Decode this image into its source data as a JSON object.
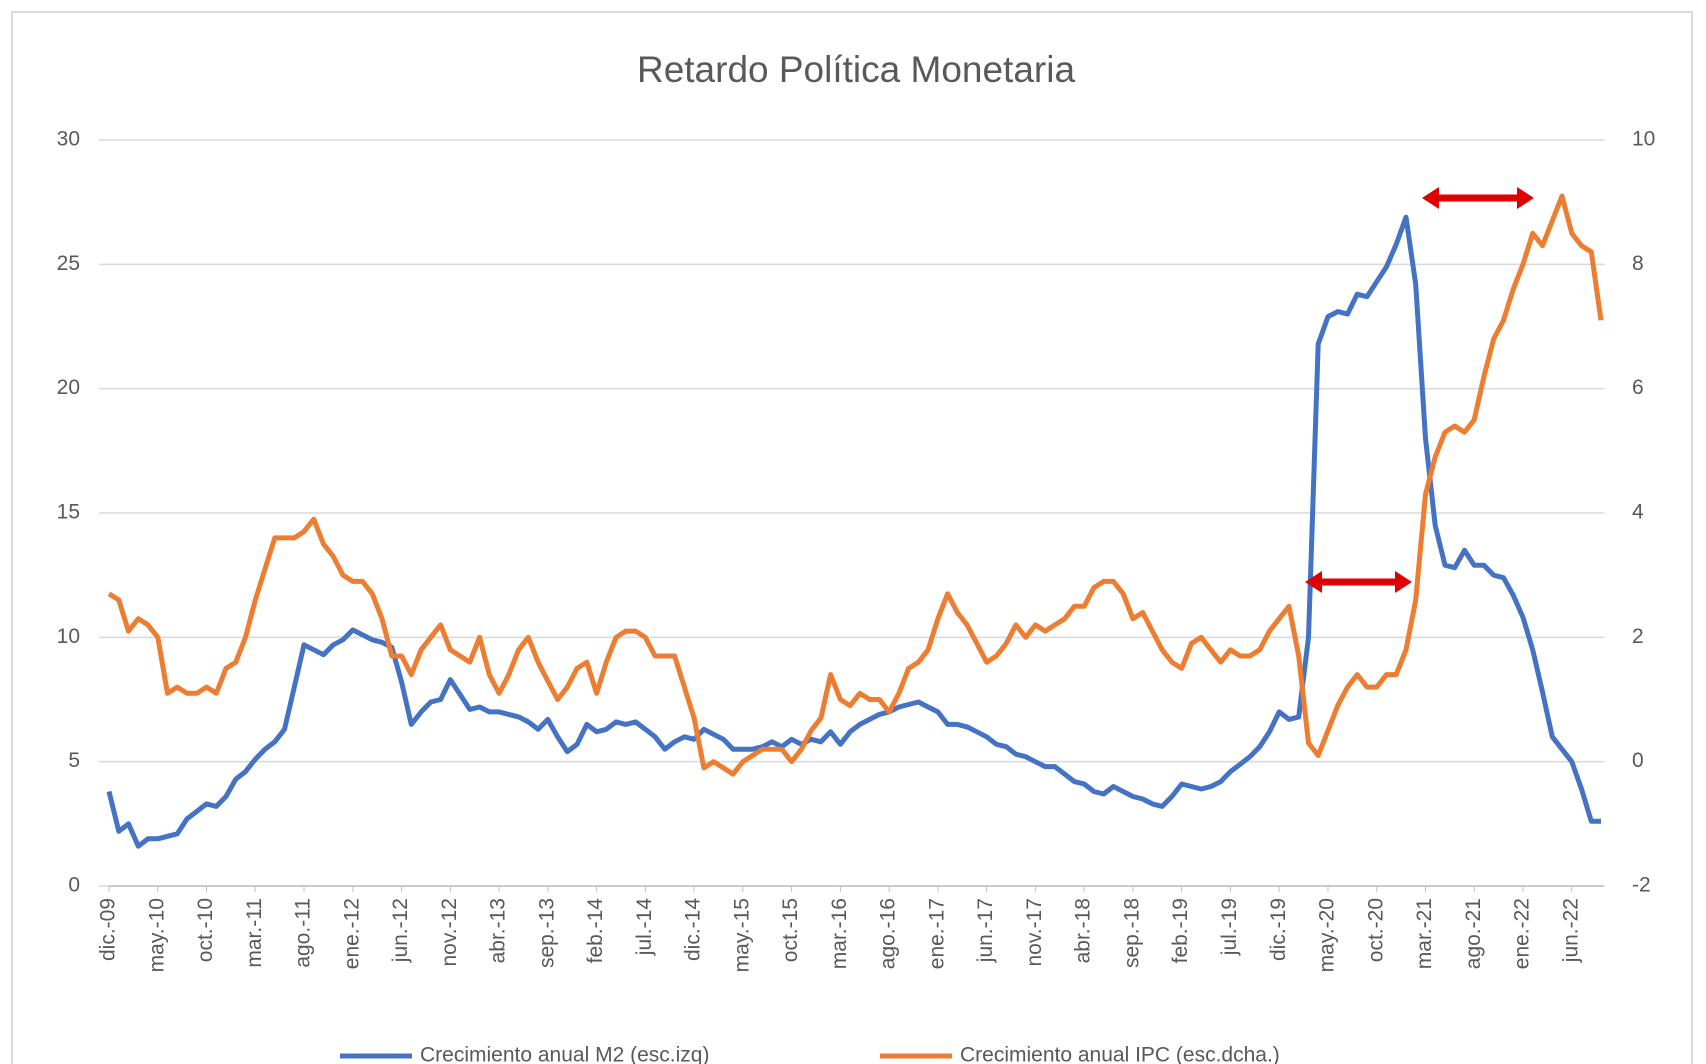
{
  "chart_data": {
    "type": "line",
    "title": "Retardo Política Monetaria",
    "categories": [
      "dic.-09",
      null,
      null,
      null,
      null,
      "may.-10",
      null,
      null,
      null,
      null,
      "oct.-10",
      null,
      null,
      null,
      null,
      "mar.-11",
      null,
      null,
      null,
      null,
      "ago.-11",
      null,
      null,
      null,
      null,
      "ene.-12",
      null,
      null,
      null,
      null,
      "jun.-12",
      null,
      null,
      null,
      null,
      "nov.-12",
      null,
      null,
      null,
      null,
      "abr.-13",
      null,
      null,
      null,
      null,
      "sep.-13",
      null,
      null,
      null,
      null,
      "feb.-14",
      null,
      null,
      null,
      null,
      "jul.-14",
      null,
      null,
      null,
      null,
      "dic.-14",
      null,
      null,
      null,
      null,
      "may.-15",
      null,
      null,
      null,
      null,
      "oct.-15",
      null,
      null,
      null,
      null,
      "mar.-16",
      null,
      null,
      null,
      null,
      "ago.-16",
      null,
      null,
      null,
      null,
      "ene.-17",
      null,
      null,
      null,
      null,
      "jun.-17",
      null,
      null,
      null,
      null,
      "nov.-17",
      null,
      null,
      null,
      null,
      "abr.-18",
      null,
      null,
      null,
      null,
      "sep.-18",
      null,
      null,
      null,
      null,
      "feb.-19",
      null,
      null,
      null,
      null,
      "jul.-19",
      null,
      null,
      null,
      null,
      "dic.-19",
      null,
      null,
      null,
      null,
      "may.-20",
      null,
      null,
      null,
      null,
      "oct.-20",
      null,
      null,
      null,
      null,
      "mar.-21",
      null,
      null,
      null,
      null,
      "ago.-21",
      null,
      null,
      null,
      null,
      "ene.-22",
      null,
      null,
      null,
      null,
      "jun.-22",
      null,
      null,
      null
    ],
    "series": [
      {
        "name": "Crecimiento anual M2 (esc.izq)",
        "color": "#4472c4",
        "axis": "y",
        "values": [
          3.8,
          2.2,
          2.5,
          1.6,
          1.9,
          1.9,
          2.0,
          2.1,
          2.7,
          3.0,
          3.3,
          3.2,
          3.6,
          4.3,
          4.6,
          5.1,
          5.5,
          5.8,
          6.3,
          8.0,
          9.7,
          9.5,
          9.3,
          9.7,
          9.9,
          10.3,
          10.1,
          9.9,
          9.8,
          9.6,
          8.2,
          6.5,
          7.0,
          7.4,
          7.5,
          8.3,
          7.7,
          7.1,
          7.2,
          7.0,
          7.0,
          6.9,
          6.8,
          6.6,
          6.3,
          6.7,
          6.0,
          5.4,
          5.7,
          6.5,
          6.2,
          6.3,
          6.6,
          6.5,
          6.6,
          6.3,
          6.0,
          5.5,
          5.8,
          6.0,
          5.9,
          6.3,
          6.1,
          5.9,
          5.5,
          5.5,
          5.5,
          5.6,
          5.8,
          5.6,
          5.9,
          5.7,
          5.9,
          5.8,
          6.2,
          5.7,
          6.2,
          6.5,
          6.7,
          6.9,
          7.0,
          7.2,
          7.3,
          7.4,
          7.2,
          7.0,
          6.5,
          6.5,
          6.4,
          6.2,
          6.0,
          5.7,
          5.6,
          5.3,
          5.2,
          5.0,
          4.8,
          4.8,
          4.5,
          4.2,
          4.1,
          3.8,
          3.7,
          4.0,
          3.8,
          3.6,
          3.5,
          3.3,
          3.2,
          3.6,
          4.1,
          4.0,
          3.9,
          4.0,
          4.2,
          4.6,
          4.9,
          5.2,
          5.6,
          6.2,
          7.0,
          6.7,
          6.8,
          10,
          21.8,
          22.9,
          23.1,
          23.0,
          23.8,
          23.7,
          24.3,
          24.9,
          25.8,
          26.9,
          24.2,
          18,
          14.5,
          12.9,
          12.8,
          13.5,
          12.9,
          12.9,
          12.5,
          12.4,
          11.7,
          10.8,
          9.5,
          7.8,
          6.0,
          5.5,
          5.0,
          3.9,
          2.6,
          2.6
        ]
      },
      {
        "name": "Crecimiento anual IPC (esc.dcha.)",
        "color": "#ed7d31",
        "axis": "y2",
        "values": [
          2.7,
          2.6,
          2.1,
          2.3,
          2.2,
          2.0,
          1.1,
          1.2,
          1.1,
          1.1,
          1.2,
          1.1,
          1.5,
          1.6,
          2.0,
          2.6,
          3.1,
          3.6,
          3.6,
          3.6,
          3.7,
          3.9,
          3.5,
          3.3,
          3.0,
          2.9,
          2.9,
          2.7,
          2.3,
          1.7,
          1.7,
          1.4,
          1.8,
          2.0,
          2.2,
          1.8,
          1.7,
          1.6,
          2.0,
          1.4,
          1.1,
          1.4,
          1.8,
          2.0,
          1.6,
          1.3,
          1.0,
          1.2,
          1.5,
          1.6,
          1.1,
          1.6,
          2.0,
          2.1,
          2.1,
          2.0,
          1.7,
          1.7,
          1.7,
          1.2,
          0.7,
          -0.1,
          0.0,
          -0.1,
          -0.2,
          0.0,
          0.1,
          0.2,
          0.2,
          0.2,
          0.0,
          0.2,
          0.5,
          0.7,
          1.4,
          1.0,
          0.9,
          1.1,
          1.0,
          1.0,
          0.8,
          1.1,
          1.5,
          1.6,
          1.8,
          2.3,
          2.7,
          2.4,
          2.2,
          1.9,
          1.6,
          1.7,
          1.9,
          2.2,
          2.0,
          2.2,
          2.1,
          2.2,
          2.3,
          2.5,
          2.5,
          2.8,
          2.9,
          2.9,
          2.7,
          2.3,
          2.4,
          2.1,
          1.8,
          1.6,
          1.5,
          1.9,
          2.0,
          1.8,
          1.6,
          1.8,
          1.7,
          1.7,
          1.8,
          2.1,
          2.3,
          2.5,
          1.7,
          0.3,
          0.1,
          0.5,
          0.9,
          1.2,
          1.4,
          1.2,
          1.2,
          1.4,
          1.4,
          1.8,
          2.6,
          4.3,
          4.9,
          5.3,
          5.4,
          5.3,
          5.5,
          6.2,
          6.8,
          7.1,
          7.6,
          8.0,
          8.5,
          8.3,
          8.7,
          9.1,
          8.5,
          8.3,
          8.2,
          7.1
        ]
      }
    ],
    "ylim": [
      0,
      30
    ],
    "yticks": [
      0,
      5,
      10,
      15,
      20,
      25,
      30
    ],
    "y2lim": [
      -2,
      10
    ],
    "y2ticks": [
      -2,
      0,
      2,
      4,
      6,
      8,
      10
    ],
    "grid": true,
    "legend": "bottom"
  }
}
